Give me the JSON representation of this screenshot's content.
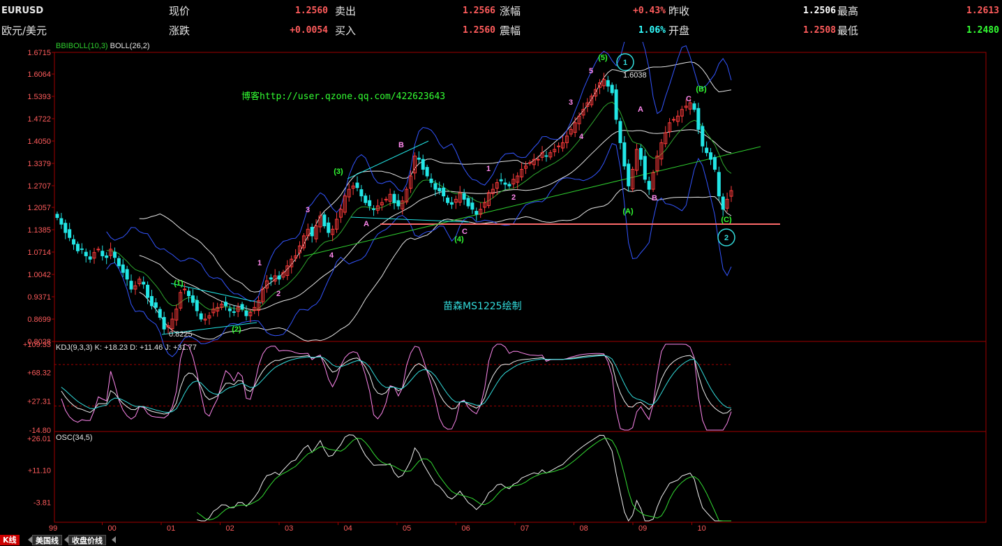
{
  "header": {
    "symbol": "EURUSD",
    "name": "欧元/美元",
    "fields": [
      {
        "label": "现价",
        "value": "1.2560",
        "color": "#ff5c5c"
      },
      {
        "label": "卖出",
        "value": "1.2566",
        "color": "#ff5c5c"
      },
      {
        "label": "涨幅",
        "value": "+0.43%",
        "color": "#ff5c5c"
      },
      {
        "label": "昨收",
        "value": "1.2506",
        "color": "#ffffff"
      },
      {
        "label": "最高",
        "value": "1.2613",
        "color": "#ff5c5c"
      },
      {
        "label": "涨跌",
        "value": "+0.0054",
        "color": "#ff5c5c"
      },
      {
        "label": "买入",
        "value": "1.2560",
        "color": "#ff5c5c"
      },
      {
        "label": "震幅",
        "value": "1.06%",
        "color": "#33ffff"
      },
      {
        "label": "开盘",
        "value": "1.2508",
        "color": "#ff5c5c"
      },
      {
        "label": "最低",
        "value": "1.2480",
        "color": "#33ff33"
      }
    ]
  },
  "tabs": [
    {
      "label": "K线",
      "active": true
    },
    {
      "label": "美国线",
      "active": false
    },
    {
      "label": "收盘价线",
      "active": false
    }
  ],
  "chart_data": [
    {
      "type": "candlestick",
      "indicator_label": "BBIBOLL(10,3)",
      "indicator_label2": "BOLL(26,2)",
      "yticks": [
        "1.6715",
        "1.6064",
        "1.5393",
        "1.4722",
        "1.4050",
        "1.3379",
        "1.2707",
        "1.2057",
        "1.1385",
        "1.0714",
        "1.0042",
        "0.9371",
        "0.8699",
        "0.8028"
      ],
      "ylim": [
        0.8028,
        1.6715
      ],
      "xticks": [
        "99",
        "00",
        "01",
        "02",
        "03",
        "04",
        "05",
        "06",
        "07",
        "08",
        "09",
        "10"
      ],
      "high_label": "1.6038",
      "low_label": "0.8225",
      "watermark1": "博客http://user.qzone.qq.com/422623643",
      "watermark2": "苗森MS1225绘制",
      "wave_labels": {
        "green": [
          "(1)",
          "(2)",
          "(3)",
          "(4)",
          "(5)",
          "(A)",
          "(B)",
          "(C)"
        ],
        "pink": [
          "1",
          "2",
          "3",
          "4",
          "A",
          "B",
          "C",
          "1",
          "2",
          "3",
          "4",
          "5",
          "A",
          "B",
          "C"
        ],
        "cyan_circles": [
          "1",
          "2"
        ]
      },
      "support_level": 1.155,
      "colors": {
        "up": "#ff3b3b",
        "down": "#22e6e6",
        "frame": "#a00000",
        "boll": "#e6e6e6",
        "bbi": "#3355ff",
        "mid": "#2fa82f",
        "trend": "#2fd02f",
        "wave_pink": "#ff88ee",
        "wave_green": "#33ff33"
      },
      "closes": [
        1.175,
        1.155,
        1.13,
        1.115,
        1.095,
        1.075,
        1.08,
        1.06,
        1.05,
        1.07,
        1.08,
        1.06,
        1.055,
        1.08,
        1.055,
        1.03,
        1.01,
        0.99,
        0.96,
        0.97,
        0.99,
        0.975,
        0.935,
        0.91,
        0.905,
        0.875,
        0.84,
        0.85,
        0.87,
        0.9,
        0.95,
        0.96,
        0.94,
        0.92,
        0.895,
        0.87,
        0.87,
        0.88,
        0.9,
        0.905,
        0.915,
        0.91,
        0.895,
        0.89,
        0.905,
        0.9,
        0.88,
        0.89,
        0.905,
        0.925,
        0.96,
        0.985,
        0.99,
        1.0,
        0.99,
        1.01,
        1.03,
        1.05,
        1.06,
        1.09,
        1.12,
        1.14,
        1.12,
        1.15,
        1.18,
        1.15,
        1.13,
        1.14,
        1.17,
        1.2,
        1.24,
        1.26,
        1.27,
        1.265,
        1.24,
        1.22,
        1.21,
        1.2,
        1.21,
        1.22,
        1.23,
        1.245,
        1.22,
        1.21,
        1.225,
        1.26,
        1.3,
        1.36,
        1.35,
        1.32,
        1.3,
        1.28,
        1.26,
        1.255,
        1.24,
        1.22,
        1.215,
        1.23,
        1.25,
        1.23,
        1.21,
        1.2,
        1.185,
        1.2,
        1.22,
        1.25,
        1.26,
        1.28,
        1.285,
        1.275,
        1.27,
        1.29,
        1.3,
        1.32,
        1.33,
        1.34,
        1.35,
        1.35,
        1.37,
        1.36,
        1.37,
        1.38,
        1.39,
        1.4,
        1.42,
        1.44,
        1.46,
        1.48,
        1.5,
        1.52,
        1.54,
        1.56,
        1.58,
        1.59,
        1.57,
        1.55,
        1.47,
        1.4,
        1.33,
        1.27,
        1.32,
        1.38,
        1.35,
        1.29,
        1.26,
        1.31,
        1.36,
        1.4,
        1.43,
        1.46,
        1.47,
        1.48,
        1.5,
        1.51,
        1.52,
        1.5,
        1.44,
        1.39,
        1.37,
        1.35,
        1.32,
        1.24,
        1.2,
        1.23,
        1.256
      ]
    },
    {
      "type": "line",
      "indicator_label": "KDJ(9,3,3)",
      "readout": "K: +18.23  D: +11.46  J: +31.77",
      "yticks": [
        "+109.33",
        "+68.32",
        "+27.31",
        "-14.80"
      ],
      "ylim": [
        -14.8,
        109.33
      ],
      "dashed_levels": [
        80,
        20
      ],
      "colors": {
        "K": "#f0f0f0",
        "D": "#33dddd",
        "J": "#ff88ee"
      }
    },
    {
      "type": "line",
      "indicator_label": "OSC(34,5)",
      "yticks": [
        "+26.01",
        "+11.10",
        "-3.81"
      ],
      "ylim": [
        -12.5,
        28.0
      ],
      "colors": {
        "osc": "#f0f0f0",
        "signal": "#33dd33"
      }
    }
  ]
}
